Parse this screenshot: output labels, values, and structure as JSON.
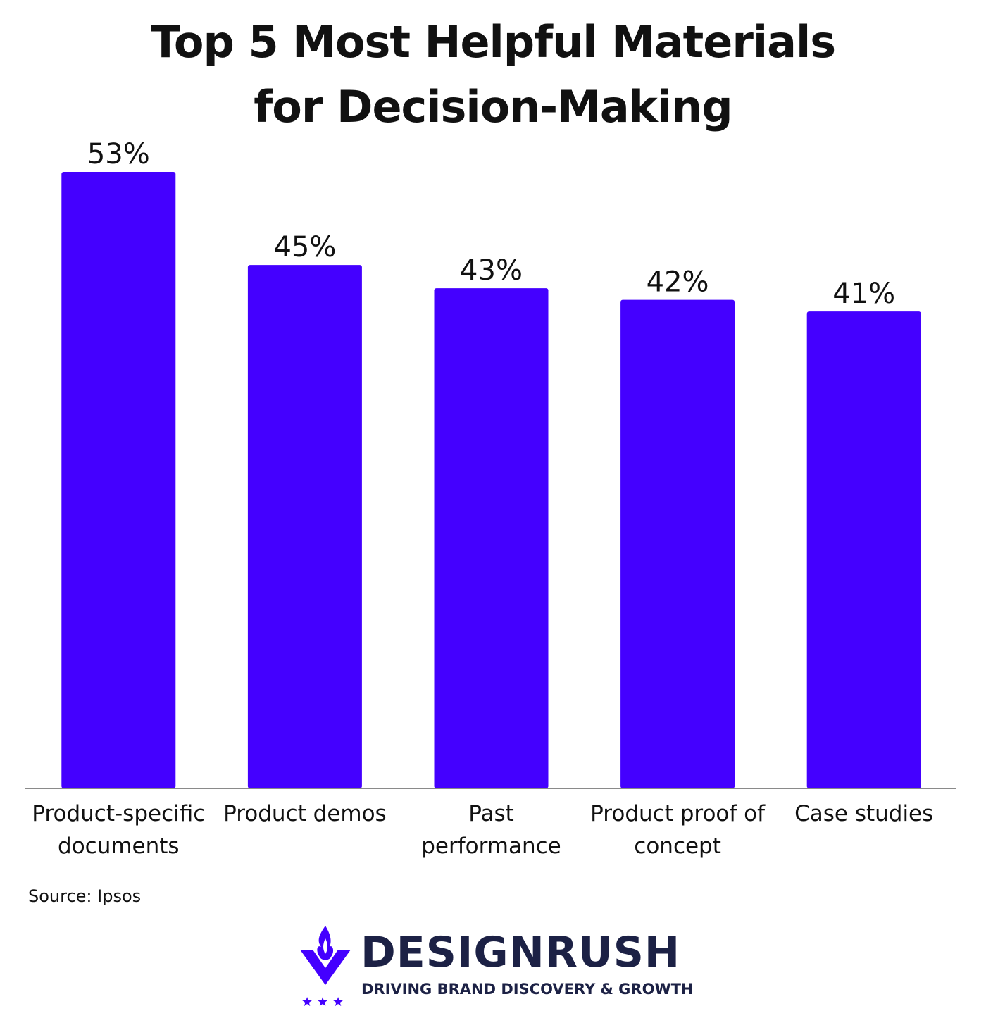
{
  "title_lines": [
    "Top 5 Most Helpful Materials",
    "for Decision-Making"
  ],
  "chart_data": {
    "type": "bar",
    "title": "Top 5 Most Helpful Materials for Decision-Making",
    "categories": [
      [
        "Product-specific",
        "documents"
      ],
      [
        "Product demos"
      ],
      [
        "Past",
        "performance"
      ],
      [
        "Product proof of",
        "concept"
      ],
      [
        "Case studies"
      ]
    ],
    "values": [
      53,
      45,
      43,
      42,
      41
    ],
    "value_labels": [
      "53%",
      "45%",
      "43%",
      "42%",
      "41%"
    ],
    "unit": "%",
    "ylim": [
      0,
      53
    ],
    "grid": false,
    "bar_color": "#4400ff"
  },
  "source": "Source: Ipsos",
  "brand": {
    "name": "DESIGNRUSH",
    "tagline": "DRIVING BRAND DISCOVERY & GROWTH",
    "icon": "torch-shield-icon",
    "primary_color": "#1c2145",
    "accent_color": "#4400ff"
  }
}
